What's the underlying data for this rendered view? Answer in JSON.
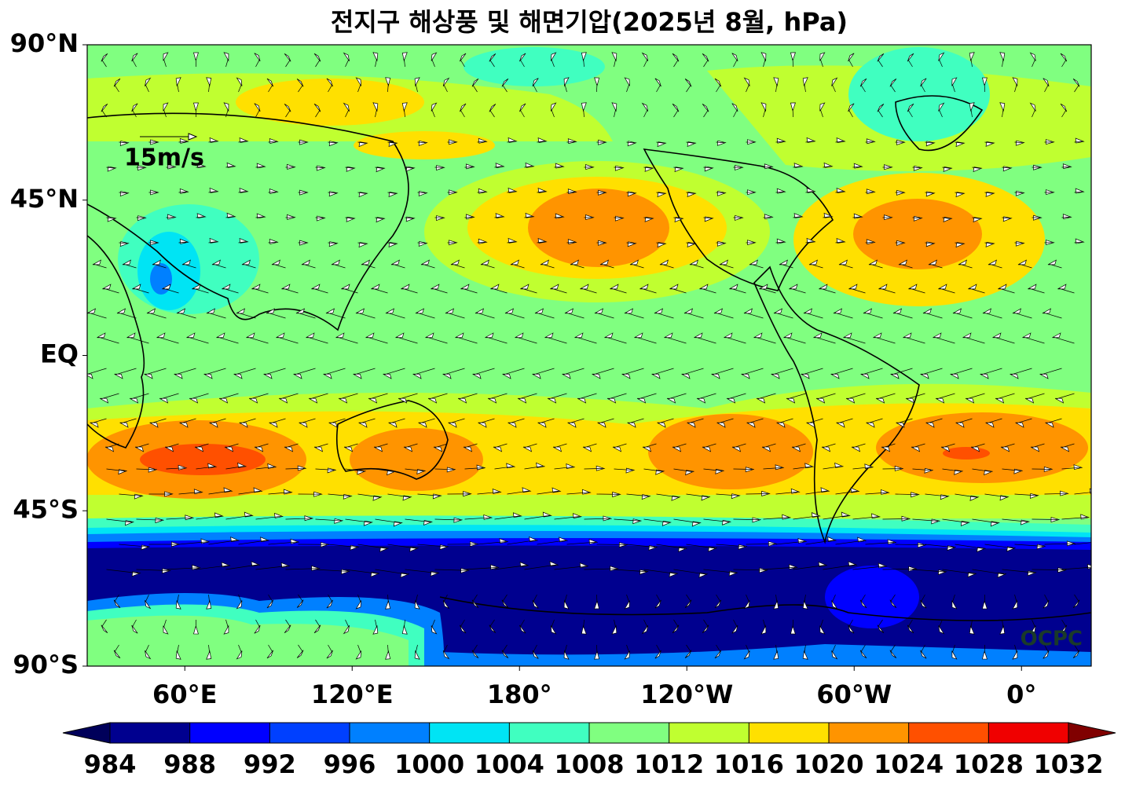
{
  "title": "전지구 해상풍 및 해면기압(2025년 8월, hPa)",
  "map": {
    "lon_range": [
      25,
      385
    ],
    "lat_range": [
      -90,
      90
    ],
    "lat_ticks": [
      {
        "value": 90,
        "label": "90°N"
      },
      {
        "value": 45,
        "label": "45°N"
      },
      {
        "value": 0,
        "label": "EQ"
      },
      {
        "value": -45,
        "label": "45°S"
      },
      {
        "value": -90,
        "label": "90°S"
      }
    ],
    "lon_ticks": [
      {
        "value": 60,
        "label": "60°E"
      },
      {
        "value": 120,
        "label": "120°E"
      },
      {
        "value": 180,
        "label": "180°"
      },
      {
        "value": 240,
        "label": "120°W"
      },
      {
        "value": 300,
        "label": "60°W"
      },
      {
        "value": 360,
        "label": "0°"
      }
    ],
    "reference_arrow": "15m/s",
    "logo": "OCPC"
  },
  "colorbar": {
    "ticks": [
      984,
      988,
      992,
      996,
      1000,
      1004,
      1008,
      1012,
      1016,
      1020,
      1024,
      1028,
      1032
    ],
    "colors": [
      "#00008f",
      "#0000ff",
      "#0040ff",
      "#0080ff",
      "#00e4f4",
      "#40ffc0",
      "#80ff80",
      "#c0ff30",
      "#ffe000",
      "#ff9400",
      "#ff5000",
      "#f00000"
    ],
    "under_color": "#00005a",
    "over_color": "#800000"
  }
}
